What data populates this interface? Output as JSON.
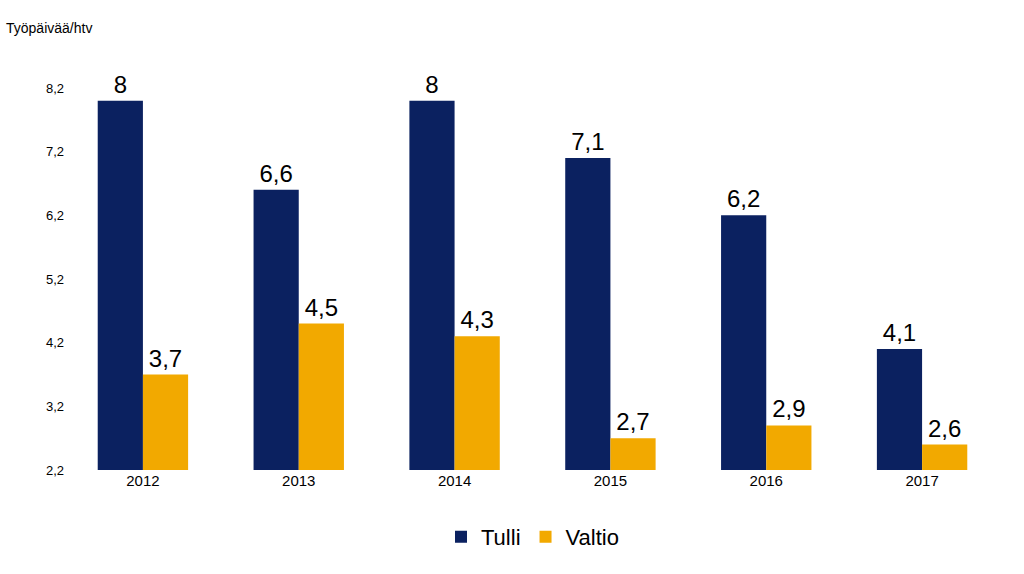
{
  "chart_data": {
    "type": "bar",
    "ylabel": "Työpäivää/htv",
    "categories": [
      "2012",
      "2013",
      "2014",
      "2015",
      "2016",
      "2017"
    ],
    "series": [
      {
        "name": "Tulli",
        "color": "#0b2160",
        "values": [
          8,
          6.6,
          8,
          7.1,
          6.2,
          4.1
        ],
        "value_labels": [
          "8",
          "6,6",
          "8",
          "7,1",
          "6,2",
          "4,1"
        ]
      },
      {
        "name": "Valtio",
        "color": "#f2a900",
        "values": [
          3.7,
          4.5,
          4.3,
          2.7,
          2.9,
          2.6
        ],
        "value_labels": [
          "3,7",
          "4,5",
          "4,3",
          "2,7",
          "2,9",
          "2,6"
        ]
      }
    ],
    "ylim": [
      2.2,
      8.2
    ],
    "yticks": [
      {
        "value": 2.2,
        "label": "2,2"
      },
      {
        "value": 3.2,
        "label": "3,2"
      },
      {
        "value": 4.2,
        "label": "4,2"
      },
      {
        "value": 5.2,
        "label": "5,2"
      },
      {
        "value": 6.2,
        "label": "6,2"
      },
      {
        "value": 7.2,
        "label": "7,2"
      },
      {
        "value": 8.2,
        "label": "8,2"
      }
    ],
    "grid": false,
    "data_labels": true,
    "legend": "bottom"
  }
}
